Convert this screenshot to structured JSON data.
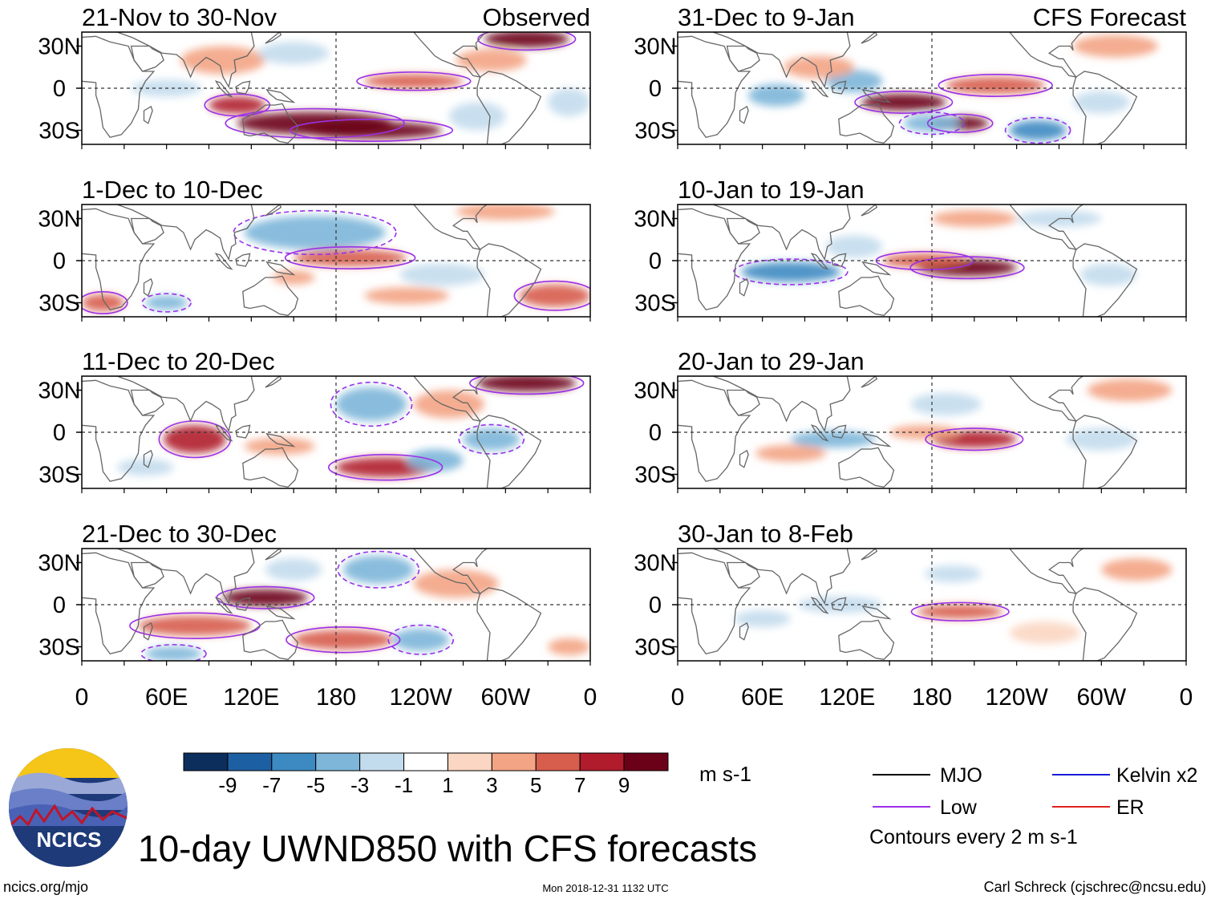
{
  "chart_data": {
    "type": "heatmap",
    "title": "10-day UWND850 with CFS forecasts",
    "variable": "850 hPa zonal wind anomaly",
    "units": "m s-1",
    "observed_label": "Observed",
    "forecast_label": "CFS Forecast",
    "xlabel": "",
    "ylabel": "",
    "x_ticks": [
      "0",
      "60E",
      "120E",
      "180",
      "120W",
      "60W",
      "0"
    ],
    "y_ticks": [
      "30N",
      "0",
      "30S"
    ],
    "xlim_deg_east": [
      0,
      360
    ],
    "ylim_deg": [
      -40,
      40
    ],
    "panels": [
      {
        "column": "observed",
        "period": "21-Nov to 30-Nov",
        "features": [
          {
            "u": 10,
            "lon": 165,
            "lat": -25,
            "rx": 55,
            "ry": 8
          },
          {
            "u": 9,
            "lon": 205,
            "lat": -30,
            "rx": 50,
            "ry": 6
          },
          {
            "u": 7,
            "lon": 110,
            "lat": -12,
            "rx": 20,
            "ry": 6
          },
          {
            "u": 9,
            "lon": 315,
            "lat": 35,
            "rx": 30,
            "ry": 6
          },
          {
            "u": 5,
            "lon": 235,
            "lat": 5,
            "rx": 35,
            "ry": 5
          },
          {
            "u": 3,
            "lon": 290,
            "lat": 20,
            "rx": 25,
            "ry": 8
          },
          {
            "u": 3,
            "lon": 100,
            "lat": 20,
            "rx": 30,
            "ry": 10
          },
          {
            "u": -3,
            "lon": 60,
            "lat": 0,
            "rx": 25,
            "ry": 6
          },
          {
            "u": -3,
            "lon": 280,
            "lat": -20,
            "rx": 20,
            "ry": 10
          },
          {
            "u": -3,
            "lon": 150,
            "lat": 25,
            "rx": 25,
            "ry": 8
          },
          {
            "u": -3,
            "lon": 345,
            "lat": -10,
            "rx": 15,
            "ry": 10
          }
        ]
      },
      {
        "column": "observed",
        "period": "1-Dec to 10-Dec",
        "features": [
          {
            "u": -5,
            "lon": 165,
            "lat": 20,
            "rx": 50,
            "ry": 12
          },
          {
            "u": 5,
            "lon": 190,
            "lat": 2,
            "rx": 40,
            "ry": 6
          },
          {
            "u": 6,
            "lon": 335,
            "lat": -25,
            "rx": 25,
            "ry": 8
          },
          {
            "u": 5,
            "lon": 15,
            "lat": -30,
            "rx": 15,
            "ry": 6
          },
          {
            "u": -5,
            "lon": 60,
            "lat": -30,
            "rx": 15,
            "ry": 5
          },
          {
            "u": 4,
            "lon": 150,
            "lat": -12,
            "rx": 15,
            "ry": 5
          },
          {
            "u": 4,
            "lon": 300,
            "lat": 35,
            "rx": 35,
            "ry": 6
          },
          {
            "u": -3,
            "lon": 255,
            "lat": -10,
            "rx": 30,
            "ry": 8
          },
          {
            "u": 3,
            "lon": 230,
            "lat": -25,
            "rx": 30,
            "ry": 6
          }
        ]
      },
      {
        "column": "observed",
        "period": "11-Dec to 20-Dec",
        "features": [
          {
            "u": 7,
            "lon": 80,
            "lat": -5,
            "rx": 22,
            "ry": 10
          },
          {
            "u": 9,
            "lon": 315,
            "lat": 35,
            "rx": 35,
            "ry": 6
          },
          {
            "u": 7,
            "lon": 215,
            "lat": -25,
            "rx": 35,
            "ry": 7
          },
          {
            "u": -5,
            "lon": 205,
            "lat": 20,
            "rx": 25,
            "ry": 12
          },
          {
            "u": -5,
            "lon": 290,
            "lat": -5,
            "rx": 20,
            "ry": 8
          },
          {
            "u": 4,
            "lon": 140,
            "lat": -10,
            "rx": 25,
            "ry": 6
          },
          {
            "u": -3,
            "lon": 45,
            "lat": -25,
            "rx": 20,
            "ry": 6
          },
          {
            "u": -4,
            "lon": 250,
            "lat": -20,
            "rx": 20,
            "ry": 8
          },
          {
            "u": 3,
            "lon": 260,
            "lat": 20,
            "rx": 25,
            "ry": 10
          }
        ]
      },
      {
        "column": "observed",
        "period": "21-Dec to 30-Dec",
        "features": [
          {
            "u": 9,
            "lon": 130,
            "lat": 5,
            "rx": 30,
            "ry": 6
          },
          {
            "u": 6,
            "lon": 80,
            "lat": -15,
            "rx": 40,
            "ry": 7
          },
          {
            "u": -5,
            "lon": 210,
            "lat": 25,
            "rx": 25,
            "ry": 10
          },
          {
            "u": -5,
            "lon": 240,
            "lat": -25,
            "rx": 20,
            "ry": 8
          },
          {
            "u": 5,
            "lon": 185,
            "lat": -25,
            "rx": 35,
            "ry": 7
          },
          {
            "u": -5,
            "lon": 65,
            "lat": -35,
            "rx": 20,
            "ry": 5
          },
          {
            "u": 4,
            "lon": 265,
            "lat": 15,
            "rx": 30,
            "ry": 10
          },
          {
            "u": 4,
            "lon": 345,
            "lat": -30,
            "rx": 15,
            "ry": 6
          },
          {
            "u": -3,
            "lon": 150,
            "lat": 25,
            "rx": 20,
            "ry": 8
          }
        ]
      },
      {
        "column": "forecast",
        "period": "31-Dec to 9-Jan",
        "features": [
          {
            "u": 10,
            "lon": 160,
            "lat": -10,
            "rx": 30,
            "ry": 6
          },
          {
            "u": 9,
            "lon": 200,
            "lat": -25,
            "rx": 20,
            "ry": 5
          },
          {
            "u": 6,
            "lon": 225,
            "lat": 2,
            "rx": 35,
            "ry": 6
          },
          {
            "u": -7,
            "lon": 255,
            "lat": -30,
            "rx": 20,
            "ry": 7
          },
          {
            "u": -5,
            "lon": 180,
            "lat": -25,
            "rx": 20,
            "ry": 6
          },
          {
            "u": -4,
            "lon": 125,
            "lat": 5,
            "rx": 20,
            "ry": 8
          },
          {
            "u": -4,
            "lon": 70,
            "lat": -5,
            "rx": 20,
            "ry": 8
          },
          {
            "u": 3,
            "lon": 310,
            "lat": 30,
            "rx": 30,
            "ry": 8
          },
          {
            "u": 3,
            "lon": 100,
            "lat": 15,
            "rx": 25,
            "ry": 8
          },
          {
            "u": -3,
            "lon": 300,
            "lat": -10,
            "rx": 20,
            "ry": 8
          }
        ]
      },
      {
        "column": "forecast",
        "period": "10-Jan to 19-Jan",
        "features": [
          {
            "u": -7,
            "lon": 80,
            "lat": -8,
            "rx": 35,
            "ry": 7
          },
          {
            "u": 9,
            "lon": 205,
            "lat": -5,
            "rx": 35,
            "ry": 6
          },
          {
            "u": 5,
            "lon": 175,
            "lat": 0,
            "rx": 30,
            "ry": 5
          },
          {
            "u": -3,
            "lon": 270,
            "lat": 30,
            "rx": 30,
            "ry": 6
          },
          {
            "u": -3,
            "lon": 125,
            "lat": 10,
            "rx": 20,
            "ry": 8
          },
          {
            "u": 3,
            "lon": 210,
            "lat": 30,
            "rx": 30,
            "ry": 6
          },
          {
            "u": -3,
            "lon": 305,
            "lat": -10,
            "rx": 20,
            "ry": 8
          }
        ]
      },
      {
        "column": "forecast",
        "period": "20-Jan to 29-Jan",
        "features": [
          {
            "u": 8,
            "lon": 210,
            "lat": -5,
            "rx": 30,
            "ry": 6
          },
          {
            "u": 4,
            "lon": 175,
            "lat": 0,
            "rx": 25,
            "ry": 5
          },
          {
            "u": -4,
            "lon": 110,
            "lat": -5,
            "rx": 30,
            "ry": 6
          },
          {
            "u": -3,
            "lon": 300,
            "lat": -5,
            "rx": 25,
            "ry": 8
          },
          {
            "u": 3,
            "lon": 320,
            "lat": 30,
            "rx": 30,
            "ry": 8
          },
          {
            "u": -3,
            "lon": 190,
            "lat": 20,
            "rx": 25,
            "ry": 8
          },
          {
            "u": 3,
            "lon": 80,
            "lat": -15,
            "rx": 25,
            "ry": 6
          }
        ]
      },
      {
        "column": "forecast",
        "period": "30-Jan to 8-Feb",
        "features": [
          {
            "u": 6,
            "lon": 200,
            "lat": -5,
            "rx": 30,
            "ry": 5
          },
          {
            "u": -3,
            "lon": 115,
            "lat": 0,
            "rx": 30,
            "ry": 6
          },
          {
            "u": -3,
            "lon": 60,
            "lat": -10,
            "rx": 20,
            "ry": 6
          },
          {
            "u": 3,
            "lon": 325,
            "lat": 25,
            "rx": 25,
            "ry": 8
          },
          {
            "u": -2,
            "lon": 195,
            "lat": 22,
            "rx": 20,
            "ry": 6
          },
          {
            "u": 2,
            "lon": 260,
            "lat": -20,
            "rx": 25,
            "ry": 8
          }
        ]
      }
    ],
    "colorbar": {
      "levels": [
        -11,
        -9,
        -7,
        -5,
        -3,
        -1,
        1,
        3,
        5,
        7,
        9,
        11
      ],
      "tick_labels": [
        "-9",
        "-7",
        "-5",
        "-3",
        "-1",
        "1",
        "3",
        "5",
        "7",
        "9"
      ],
      "colors": [
        "#0b2e5c",
        "#1d5fa3",
        "#3d8ac2",
        "#7db6d9",
        "#c3dced",
        "#ffffff",
        "#fbd6c2",
        "#f3a484",
        "#d75d4d",
        "#b01c2c",
        "#6b0019"
      ],
      "units": "m s-1"
    }
  },
  "legend": {
    "items": [
      {
        "label": "MJO",
        "color": "#000000"
      },
      {
        "label": "Kelvin x2",
        "color": "#1a1ad9"
      },
      {
        "label": "Low",
        "color": "#9b30e8"
      },
      {
        "label": "ER",
        "color": "#e02020"
      }
    ],
    "contour_note": "Contours every 2 m s-1"
  },
  "footer": {
    "logo_text": "NCICS",
    "url": "ncics.org/mjo",
    "timestamp": "Mon 2018-12-31 1132 UTC",
    "credit": "Carl Schreck (cjschrec@ncsu.edu)"
  },
  "colors": {
    "land_outline": "#666666",
    "contour_low": "#9b30e8"
  }
}
